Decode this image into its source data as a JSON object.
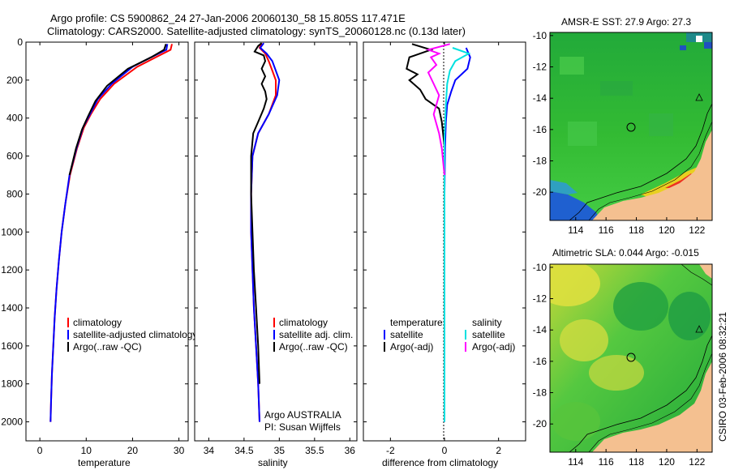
{
  "title_line1": "Argo profile: CS 5900862_24 27-Jan-2006 20060130_58 15.805S 117.471E",
  "title_line2": "Climatology: CARS2000. Satellite-adjusted climatology: synTS_20060128.nc (0.13d later)",
  "colors": {
    "clim": "#ff0000",
    "sat": "#0000ff",
    "argo": "#000000",
    "sal_sat": "#00e0e0",
    "sal_argo": "#ff00ff",
    "land": "#f4c090"
  },
  "chart_data": [
    {
      "type": "line",
      "id": "temperature",
      "xlabel": "temperature",
      "ylabel": "",
      "xlim": [
        -3,
        32
      ],
      "ylim": [
        2100,
        0
      ],
      "xticks": [
        0,
        10,
        20,
        30
      ],
      "xtick_labels": [
        "0",
        "10",
        "20",
        "30"
      ],
      "yticks": [
        0,
        200,
        400,
        600,
        800,
        1000,
        1200,
        1400,
        1600,
        1800,
        2000
      ],
      "ytick_labels": [
        "0",
        "200",
        "400",
        "600",
        "800",
        "1000",
        "1200",
        "1400",
        "1600",
        "1800",
        "2000"
      ],
      "legend": [
        "climatology",
        "satellite-adjusted climatology",
        "Argo(..raw -QC)"
      ],
      "series": [
        {
          "name": "climatology",
          "color_key": "clim",
          "x": [
            28.5,
            28.2,
            25,
            21,
            16,
            13,
            11,
            9.5,
            8,
            6.5,
            5.5,
            4.7,
            4.1,
            3.6,
            3.2,
            2.9,
            2.6,
            2.4,
            2.3
          ],
          "y": [
            10,
            40,
            80,
            130,
            220,
            300,
            380,
            450,
            560,
            700,
            850,
            1000,
            1150,
            1300,
            1450,
            1600,
            1750,
            1900,
            2000
          ]
        },
        {
          "name": "satellite-adjusted climatology",
          "color_key": "sat",
          "x": [
            27.5,
            27.3,
            24,
            20,
            15.5,
            12.5,
            10.8,
            9.3,
            7.9,
            6.4,
            5.5,
            4.7,
            4.1,
            3.6,
            3.2,
            2.9,
            2.6,
            2.4,
            2.3
          ],
          "y": [
            10,
            40,
            80,
            130,
            220,
            300,
            380,
            450,
            560,
            700,
            850,
            1000,
            1150,
            1300,
            1450,
            1600,
            1750,
            1900,
            2000
          ]
        },
        {
          "name": "Argo(..raw -QC)",
          "color_key": "argo",
          "x": [
            27.2,
            26.8,
            24,
            19,
            14.5,
            12,
            10.4,
            9.1,
            7.8,
            6.4
          ],
          "y": [
            10,
            40,
            80,
            140,
            230,
            310,
            390,
            460,
            560,
            700
          ]
        }
      ]
    },
    {
      "type": "line",
      "id": "salinity",
      "xlabel": "salinity",
      "xlim": [
        33.8,
        36.1
      ],
      "ylim": [
        2100,
        0
      ],
      "xticks": [
        34,
        34.5,
        35,
        35.5,
        36
      ],
      "xtick_labels": [
        "34",
        "34.5",
        "35",
        "35.5",
        "36"
      ],
      "legend": [
        "climatology",
        "satellite adj. clim.",
        "Argo(..raw -QC)"
      ],
      "annotation": [
        "Argo AUSTRALIA",
        "PI: Susan Wijffels"
      ],
      "series": [
        {
          "name": "climatology",
          "color_key": "clim",
          "x": [
            34.75,
            34.72,
            34.8,
            34.85,
            34.9,
            34.95,
            34.95,
            34.85,
            34.7,
            34.62,
            34.6,
            34.6,
            34.62,
            34.64,
            34.67,
            34.7,
            34.72
          ],
          "y": [
            5,
            30,
            60,
            100,
            150,
            200,
            280,
            380,
            480,
            600,
            800,
            1000,
            1200,
            1400,
            1600,
            1800,
            2000
          ]
        },
        {
          "name": "satellite adj. clim.",
          "color_key": "sat",
          "x": [
            34.78,
            34.73,
            34.82,
            34.9,
            34.95,
            35.0,
            34.97,
            34.85,
            34.7,
            34.62,
            34.6,
            34.6,
            34.62,
            34.64,
            34.67,
            34.7,
            34.72
          ],
          "y": [
            5,
            30,
            60,
            100,
            150,
            200,
            280,
            380,
            480,
            600,
            800,
            1000,
            1200,
            1400,
            1600,
            1800,
            2000
          ]
        },
        {
          "name": "Argo(..raw -QC)",
          "color_key": "argo",
          "x": [
            34.75,
            34.7,
            34.65,
            34.78,
            34.8,
            34.75,
            34.8,
            34.75,
            34.8,
            34.82,
            34.78,
            34.7,
            34.63,
            34.6,
            34.6,
            34.62,
            34.64,
            34.67,
            34.7,
            34.72
          ],
          "y": [
            5,
            20,
            50,
            70,
            100,
            140,
            180,
            220,
            260,
            300,
            350,
            420,
            480,
            600,
            800,
            1000,
            1200,
            1400,
            1600,
            1800
          ]
        }
      ]
    },
    {
      "type": "line",
      "id": "difference",
      "xlabel": "difference from climatology",
      "xlim": [
        -3,
        3
      ],
      "ylim": [
        2100,
        0
      ],
      "xticks": [
        -2,
        0,
        2
      ],
      "xtick_labels": [
        "-2",
        "0",
        "2"
      ],
      "legend_groups": [
        {
          "header": "temperature",
          "items": [
            {
              "label": "satellite",
              "color_key": "sat"
            },
            {
              "label": "Argo(-adj)",
              "color_key": "argo"
            }
          ]
        },
        {
          "header": "salinity",
          "items": [
            {
              "label": "satellite",
              "color_key": "sal_sat"
            },
            {
              "label": "Argo(-adj)",
              "color_key": "sal_argo"
            }
          ]
        }
      ],
      "series": [
        {
          "name": "temperature satellite",
          "color_key": "sat",
          "x": [
            0.8,
            0.95,
            0.85,
            0.4,
            0.25,
            0.1,
            0.05,
            0.02,
            0.0,
            0.0
          ],
          "y": [
            30,
            80,
            140,
            200,
            260,
            330,
            420,
            550,
            800,
            2000
          ]
        },
        {
          "name": "temperature Argo(-adj)",
          "color_key": "argo",
          "x": [
            -1.2,
            -0.5,
            -0.9,
            -1.3,
            -1.4,
            -1.0,
            -1.3,
            -0.9,
            -0.7,
            -0.2,
            -0.1,
            0.0,
            0.0
          ],
          "y": [
            10,
            40,
            60,
            80,
            140,
            170,
            200,
            250,
            300,
            350,
            420,
            550,
            800
          ]
        },
        {
          "name": "salinity satellite",
          "color_key": "sal_sat",
          "x": [
            0.3,
            0.9,
            0.4,
            0.2,
            0.1,
            0.05,
            0.0,
            0.0
          ],
          "y": [
            30,
            60,
            100,
            150,
            220,
            330,
            500,
            2000
          ]
        },
        {
          "name": "salinity Argo(-adj)",
          "color_key": "sal_argo",
          "x": [
            0.2,
            -0.6,
            -0.2,
            -0.5,
            -0.3,
            -0.6,
            -0.4,
            -0.2,
            -0.4,
            -0.2,
            -0.1,
            0.0
          ],
          "y": [
            10,
            40,
            60,
            80,
            120,
            160,
            220,
            280,
            380,
            480,
            560,
            700
          ]
        }
      ]
    },
    {
      "type": "heatmap",
      "id": "amsr-sst-map",
      "title": "AMSR-E SST: 27.9 Argo: 27.3",
      "xlim": [
        112.3,
        123
      ],
      "ylim": [
        -21.8,
        -9.8
      ],
      "xtick_labels": [
        "114",
        "116",
        "118",
        "120",
        "122"
      ],
      "ytick_labels": [
        "-10",
        "-12",
        "-14",
        "-16",
        "-18",
        "-20"
      ],
      "argo_position": {
        "lon": 117.47,
        "lat": -15.8
      }
    },
    {
      "type": "heatmap",
      "id": "altimetric-sla-map",
      "title": "Altimetric SLA: 0.044 Argo: -0.015",
      "xlim": [
        112.3,
        123
      ],
      "ylim": [
        -21.8,
        -9.8
      ],
      "xtick_labels": [
        "114",
        "116",
        "118",
        "120",
        "122"
      ],
      "ytick_labels": [
        "-10",
        "-12",
        "-14",
        "-16",
        "-18",
        "-20"
      ],
      "argo_position": {
        "lon": 117.47,
        "lat": -15.8
      }
    }
  ],
  "footer_vertical": "CSIRO 03-Feb-2006 08:32:21"
}
